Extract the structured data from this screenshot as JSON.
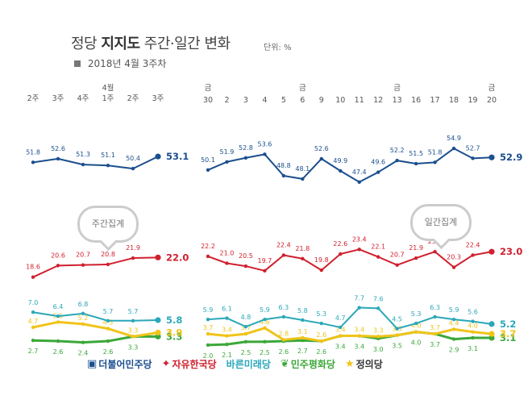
{
  "header": {
    "title_prefix": "정당",
    "title_strong": "지지도",
    "title_suffix": "주간·일간 변화",
    "unit": "단위: %",
    "subtitle": "2018년 4월 3주차"
  },
  "badges": {
    "weekly": "주간집계",
    "daily": "일간집계"
  },
  "colors": {
    "minju": "#1b4f8e",
    "jayu": "#d0202e",
    "bareun": "#2aa7b9",
    "pyeonghwa": "#3ba83a",
    "jeongui": "#f0c419"
  },
  "legend": [
    {
      "icon": "minju-logo-icon",
      "label": "더불어민주당",
      "color": "#1b4f8e"
    },
    {
      "icon": "jayu-logo-icon",
      "label": "자유한국당",
      "color": "#d0202e"
    },
    {
      "icon": "bareun-logo-icon",
      "label": "바른미래당",
      "color": "#2aa7b9"
    },
    {
      "icon": "pyeonghwa-logo-icon",
      "label": "민주평화당",
      "color": "#3ba83a"
    },
    {
      "icon": "jeongui-logo-icon",
      "label": "정의당",
      "color": "#333333"
    }
  ],
  "chart_data": [
    {
      "type": "line",
      "title": "주간집계",
      "categories": [
        "2주",
        "3주",
        "4주",
        "1주",
        "2주",
        "3주"
      ],
      "month_labels": [
        {
          "index": 3,
          "label": "4월"
        }
      ],
      "series": [
        {
          "name": "더불어민주당",
          "color": "#1b4f8e",
          "values": [
            51.8,
            52.6,
            51.3,
            51.1,
            50.4,
            53.1
          ]
        },
        {
          "name": "자유한국당",
          "color": "#d0202e",
          "values": [
            18.6,
            20.6,
            20.7,
            20.8,
            21.9,
            22.0
          ]
        },
        {
          "name": "바른미래당",
          "color": "#2aa7b9",
          "values": [
            7.0,
            6.4,
            6.8,
            5.7,
            5.7,
            5.8
          ]
        },
        {
          "name": "정의당",
          "color": "#f0c419",
          "values": [
            4.7,
            5.5,
            5.2,
            4.5,
            3.3,
            3.9
          ]
        },
        {
          "name": "민주평화당",
          "color": "#3ba83a",
          "values": [
            2.7,
            2.6,
            2.4,
            2.6,
            3.3,
            3.3
          ]
        }
      ]
    },
    {
      "type": "line",
      "title": "일간집계",
      "categories": [
        "30",
        "2",
        "3",
        "4",
        "5",
        "6",
        "9",
        "10",
        "11",
        "12",
        "13",
        "16",
        "17",
        "18",
        "19",
        "20"
      ],
      "weekday_labels": [
        {
          "index": 0,
          "label": "금"
        },
        {
          "index": 5,
          "label": "금"
        },
        {
          "index": 10,
          "label": "금"
        },
        {
          "index": 15,
          "label": "금"
        }
      ],
      "series": [
        {
          "name": "더불어민주당",
          "color": "#1b4f8e",
          "values": [
            50.1,
            51.9,
            52.8,
            53.6,
            48.8,
            48.1,
            52.6,
            49.9,
            47.4,
            49.6,
            52.2,
            51.5,
            51.8,
            54.9,
            52.7,
            52.9
          ]
        },
        {
          "name": "자유한국당",
          "color": "#d0202e",
          "values": [
            22.2,
            21.0,
            20.5,
            19.7,
            22.4,
            21.8,
            19.8,
            22.6,
            23.4,
            22.1,
            20.7,
            21.9,
            23.0,
            20.3,
            22.4,
            23.0
          ]
        },
        {
          "name": "바른미래당",
          "color": "#2aa7b9",
          "values": [
            5.9,
            6.1,
            4.8,
            5.9,
            6.3,
            5.8,
            5.3,
            4.7,
            7.7,
            7.6,
            4.5,
            5.3,
            6.3,
            5.9,
            5.6,
            5.2
          ]
        },
        {
          "name": "정의당",
          "color": "#f0c419",
          "values": [
            3.7,
            3.4,
            3.7,
            4.6,
            2.8,
            3.1,
            2.6,
            3.4,
            3.4,
            3.3,
            3.5,
            4.0,
            3.7,
            4.4,
            4.0,
            3.7
          ]
        },
        {
          "name": "민주평화당",
          "color": "#3ba83a",
          "values": [
            2.0,
            2.1,
            2.5,
            2.5,
            2.6,
            2.7,
            2.6,
            3.4,
            3.4,
            3.0,
            3.5,
            4.0,
            3.7,
            2.9,
            3.1,
            3.1
          ]
        }
      ]
    }
  ]
}
